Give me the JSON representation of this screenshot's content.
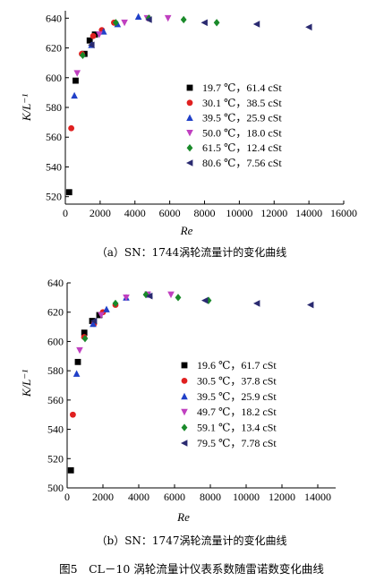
{
  "figure_caption": "图5　CL－10 涡轮流量计仪表系数随雷诺数变化曲线",
  "chart_data": [
    {
      "type": "scatter",
      "caption": "（a）SN：1744涡轮流量计的变化曲线",
      "xlabel": "Re",
      "ylabel": "K/L⁻¹",
      "xlim": [
        0,
        16000
      ],
      "ylim": [
        515,
        645
      ],
      "xticks": [
        "0",
        "2000",
        "4000",
        "6000",
        "8000",
        "10000",
        "12000",
        "14000",
        "16000"
      ],
      "xtick_values": [
        0,
        2000,
        4000,
        6000,
        8000,
        10000,
        12000,
        14000,
        16000
      ],
      "yticks": [
        "520",
        "540",
        "560",
        "580",
        "600",
        "620",
        "640"
      ],
      "ytick_values": [
        520,
        540,
        560,
        580,
        600,
        620,
        640
      ],
      "legend_position": "right",
      "series": [
        {
          "name": "19.7 ℃，61.4 cSt",
          "marker": "square",
          "color": "#000000",
          "x": [
            220,
            590,
            1100,
            1400,
            1700
          ],
          "y": [
            523,
            598,
            616,
            625,
            629
          ]
        },
        {
          "name": "30.1 ℃，38.5 cSt",
          "marker": "circle",
          "color": "#e02020",
          "x": [
            340,
            950,
            1600,
            2100,
            2800
          ],
          "y": [
            566,
            616,
            628,
            632,
            637
          ]
        },
        {
          "name": "39.5 ℃，25.9 cSt",
          "marker": "triangle-up",
          "color": "#2040c8",
          "x": [
            520,
            1500,
            2200,
            3000,
            4200
          ],
          "y": [
            588,
            622,
            631,
            636,
            641
          ]
        },
        {
          "name": "50.0 ℃，18.0 cSt",
          "marker": "triangle-down",
          "color": "#c040c0",
          "x": [
            680,
            1950,
            3400,
            4700,
            5900
          ],
          "y": [
            603,
            629,
            637,
            640,
            640
          ]
        },
        {
          "name": "61.5 ℃，12.4 cSt",
          "marker": "diamond",
          "color": "#1a8a2a",
          "x": [
            1000,
            2900,
            4800,
            6800,
            8700
          ],
          "y": [
            615,
            637,
            640,
            639,
            637
          ]
        },
        {
          "name": "80.6 ℃，7.56 cSt",
          "marker": "triangle-left",
          "color": "#2a2a70",
          "x": [
            1500,
            4800,
            8000,
            11000,
            14000
          ],
          "y": [
            622,
            639,
            637,
            636,
            634
          ]
        }
      ]
    },
    {
      "type": "scatter",
      "caption": "（b）SN：1747涡轮流量计的变化曲线",
      "xlabel": "Re",
      "ylabel": "K/L⁻¹",
      "xlim": [
        0,
        15000
      ],
      "ylim": [
        500,
        640
      ],
      "xticks": [
        "0",
        "2000",
        "4000",
        "6000",
        "8000",
        "10000",
        "12000",
        "14000"
      ],
      "xtick_values": [
        0,
        2000,
        4000,
        6000,
        8000,
        10000,
        12000,
        14000
      ],
      "yticks": [
        "500",
        "520",
        "540",
        "560",
        "580",
        "600",
        "620",
        "640"
      ],
      "ytick_values": [
        500,
        520,
        540,
        560,
        580,
        600,
        620,
        640
      ],
      "legend_position": "right",
      "series": [
        {
          "name": "19.6 ℃，61.7 cSt",
          "marker": "square",
          "color": "#000000",
          "x": [
            210,
            600,
            960,
            1400,
            1800
          ],
          "y": [
            512,
            586,
            606,
            614,
            618
          ]
        },
        {
          "name": "30.5 ℃，37.8 cSt",
          "marker": "circle",
          "color": "#e02020",
          "x": [
            320,
            950,
            1500,
            2000,
            2700
          ],
          "y": [
            550,
            603,
            612,
            620,
            625
          ]
        },
        {
          "name": "39.5 ℃，25.9 cSt",
          "marker": "triangle-up",
          "color": "#2040c8",
          "x": [
            530,
            1450,
            2200,
            3300,
            4600
          ],
          "y": [
            578,
            612,
            622,
            630,
            632
          ]
        },
        {
          "name": "49.7 ℃，18.2 cSt",
          "marker": "triangle-down",
          "color": "#c040c0",
          "x": [
            700,
            1900,
            3300,
            4500,
            5800
          ],
          "y": [
            594,
            618,
            630,
            632,
            632
          ]
        },
        {
          "name": "59.1 ℃，13.4 cSt",
          "marker": "diamond",
          "color": "#1a8a2a",
          "x": [
            1000,
            2700,
            4400,
            6200,
            7900
          ],
          "y": [
            602,
            626,
            632,
            630,
            628
          ]
        },
        {
          "name": "79.5 ℃，7.78 cSt",
          "marker": "triangle-left",
          "color": "#2a2a70",
          "x": [
            1500,
            4600,
            7700,
            10600,
            13600
          ],
          "y": [
            614,
            631,
            628,
            626,
            625
          ]
        }
      ]
    }
  ]
}
